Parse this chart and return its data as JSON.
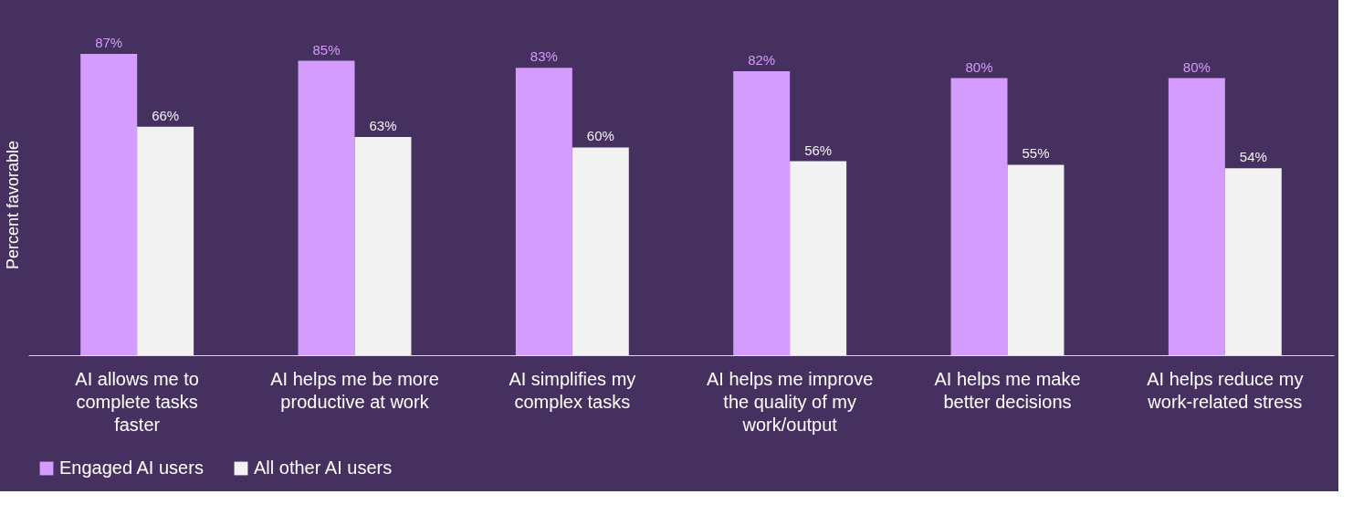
{
  "chart_data": {
    "type": "bar",
    "ylabel": "Percent favorable",
    "categories": [
      "AI allows me to complete tasks faster",
      "AI helps me be more productive at work",
      "AI simplifies my complex tasks",
      "AI helps me improve the quality of my work/output",
      "AI helps me make better decisions",
      "AI helps reduce my work-related stress"
    ],
    "series": [
      {
        "name": "Engaged AI users",
        "color": "#d49cfc",
        "values": [
          87,
          85,
          83,
          82,
          80,
          80
        ],
        "value_labels": [
          "87%",
          "85%",
          "83%",
          "82%",
          "80%",
          "80%"
        ]
      },
      {
        "name": "All other AI users",
        "color": "#f2f2f2",
        "values": [
          66,
          63,
          60,
          56,
          55,
          54
        ],
        "value_labels": [
          "66%",
          "63%",
          "60%",
          "56%",
          "55%",
          "54%"
        ]
      }
    ],
    "legend": "bottom",
    "grid": false
  }
}
